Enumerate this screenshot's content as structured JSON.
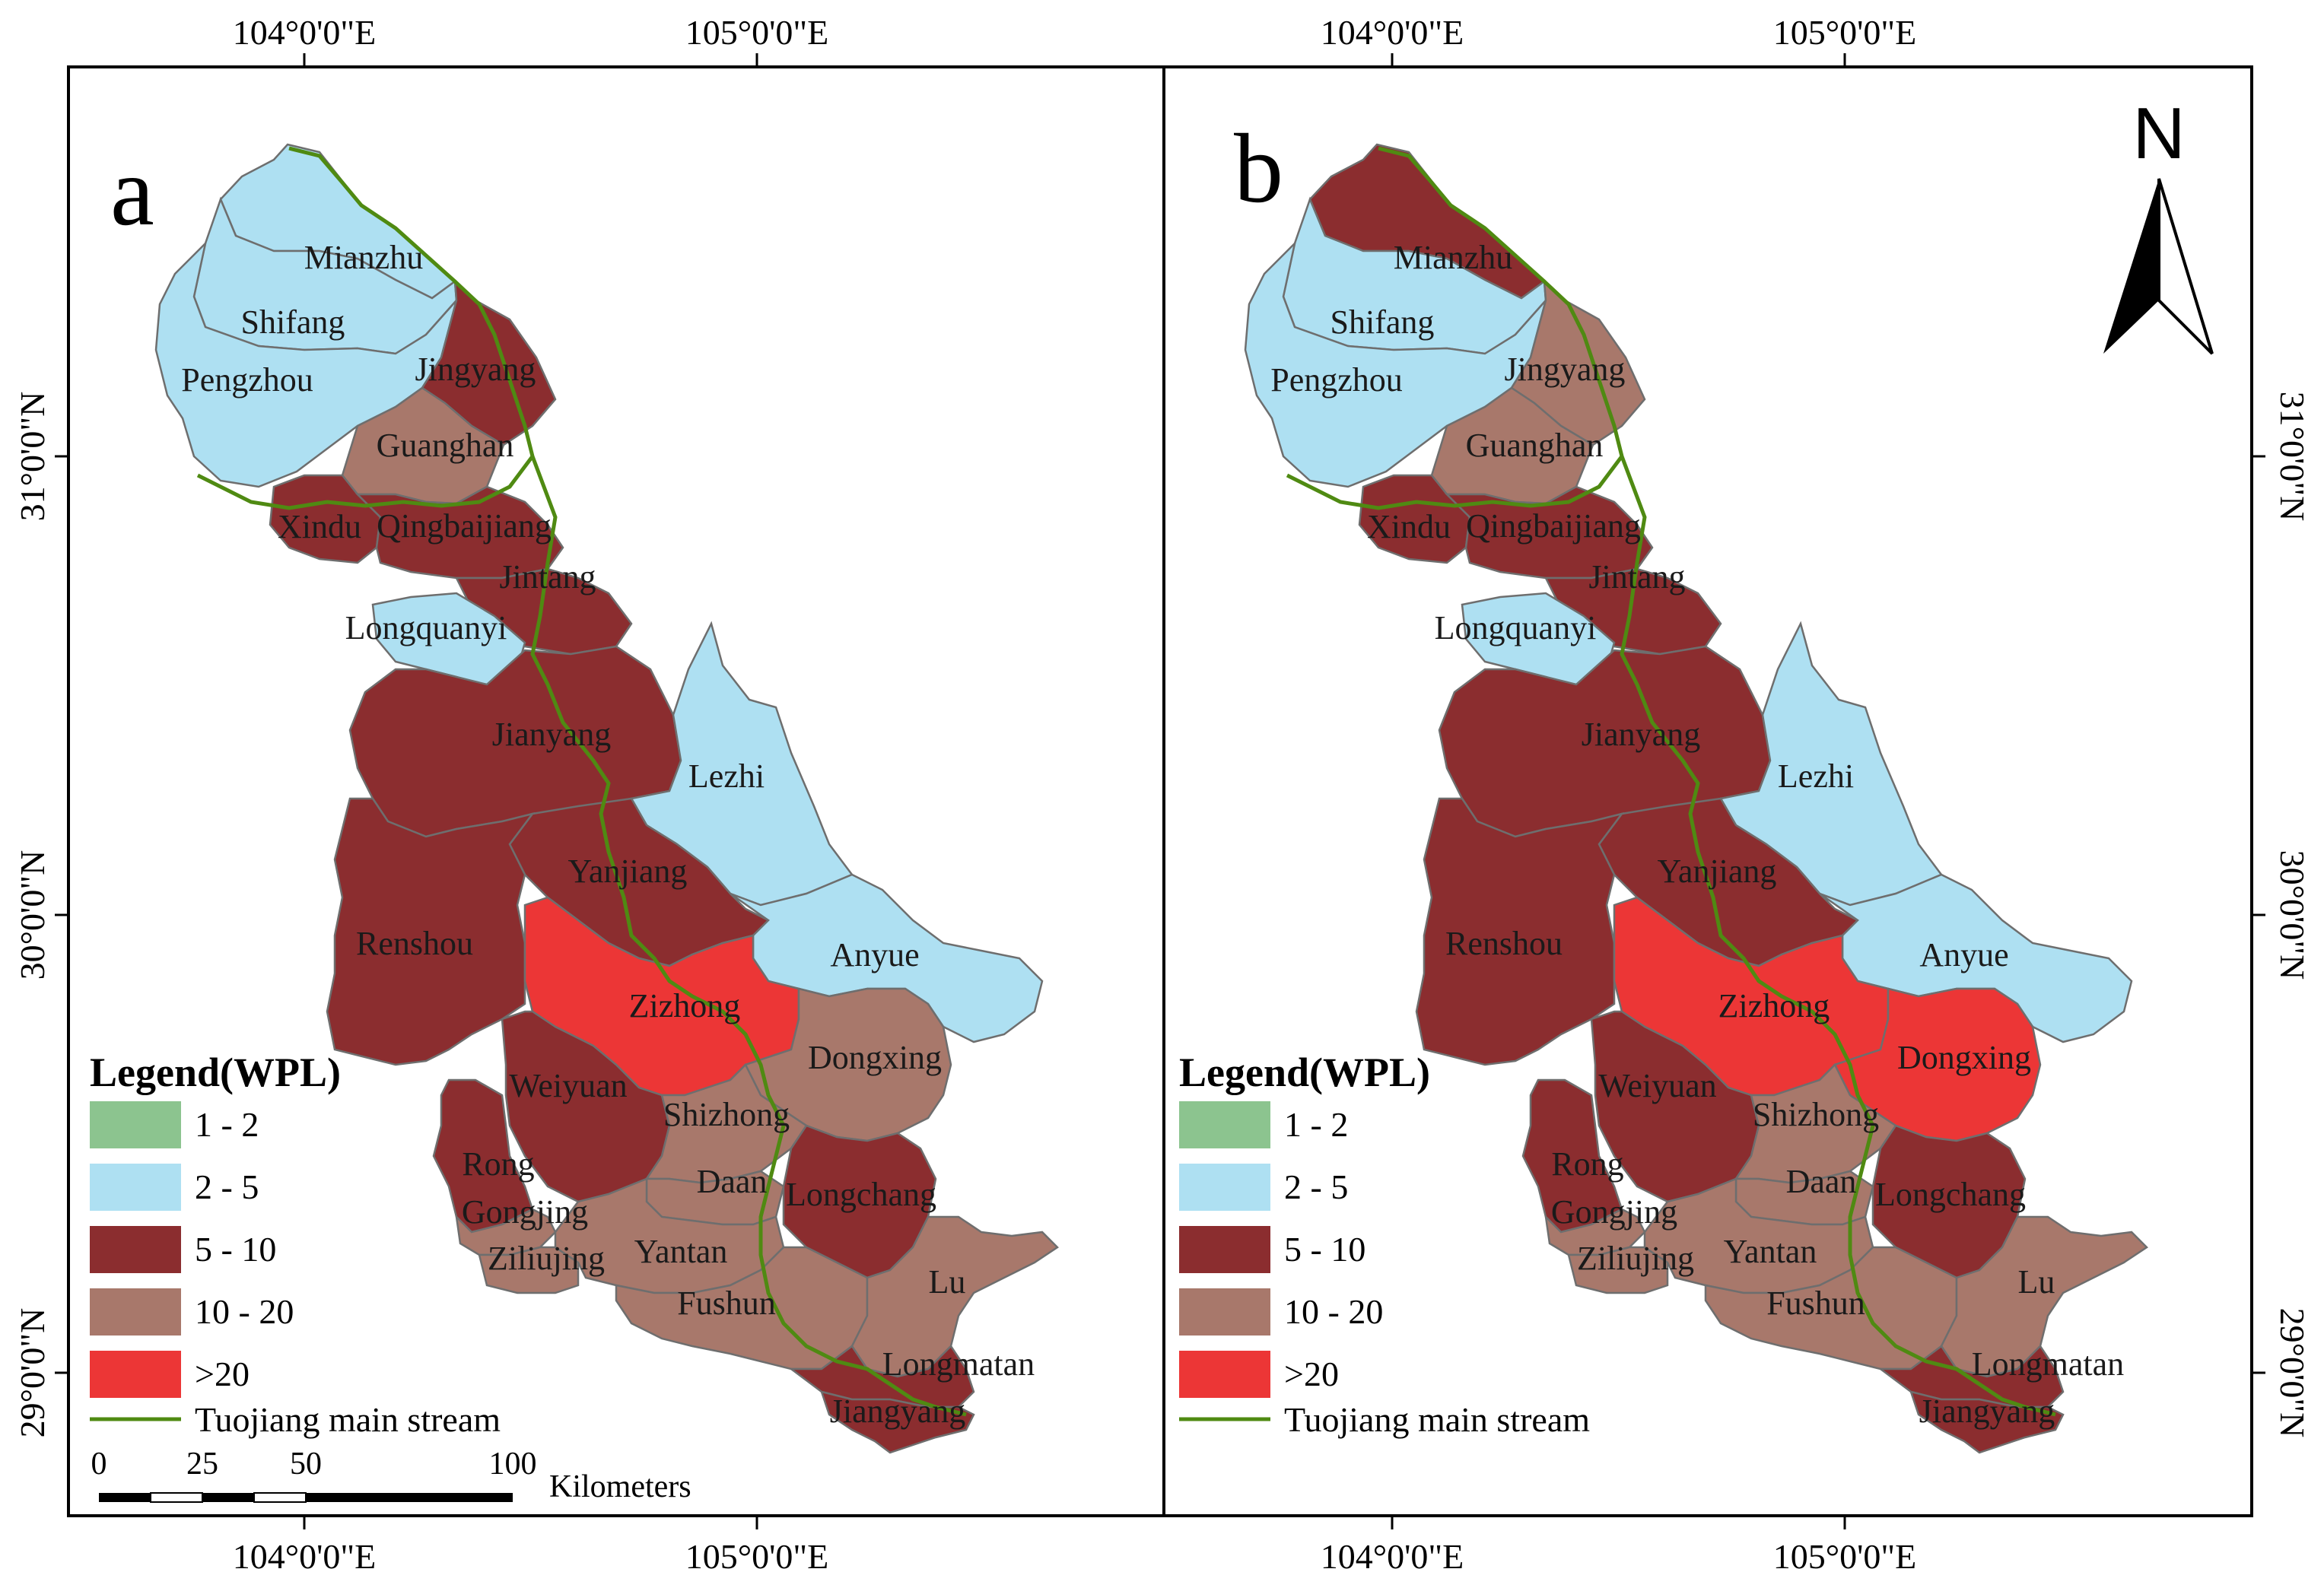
{
  "colors": {
    "class_1_2": "#8cc48f",
    "class_2_5": "#aee0f2",
    "class_5_10": "#8b2d2f",
    "class_10_20": "#a8786b",
    "class_gt20": "#ec3636",
    "stream": "#4f8a12",
    "frame": "#000000"
  },
  "axes": {
    "top_lon": [
      "104°0'0\"E",
      "105°0'0\"E"
    ],
    "bottom_lon": [
      "104°0'0\"E",
      "105°0'0\"E"
    ],
    "lat": [
      "31°0'0\"N",
      "30°0'0\"N",
      "29°0'0\"N"
    ]
  },
  "legend": {
    "title": "Legend(WPL)",
    "items": [
      {
        "label": "1 - 2",
        "color_key": "class_1_2"
      },
      {
        "label": "2 - 5",
        "color_key": "class_2_5"
      },
      {
        "label": "5 - 10",
        "color_key": "class_5_10"
      },
      {
        "label": "10 - 20",
        "color_key": "class_10_20"
      },
      {
        "label": ">20",
        "color_key": "class_gt20"
      }
    ],
    "stream_label": "Tuojiang main stream"
  },
  "scalebar": {
    "ticks": [
      "0",
      "25",
      "50",
      "100"
    ],
    "unit": "Kilometers"
  },
  "north_arrow": {
    "label": "N"
  },
  "panels": [
    {
      "letter": "a",
      "counties": {
        "Mianzhu": "class_2_5",
        "Shifang": "class_2_5",
        "Pengzhou": "class_2_5",
        "Jingyang": "class_5_10",
        "Guanghan": "class_10_20",
        "Xindu": "class_5_10",
        "Qingbaijiang": "class_5_10",
        "Jintang": "class_5_10",
        "Longquanyi": "class_2_5",
        "Jianyang": "class_5_10",
        "Lezhi": "class_2_5",
        "Yanjiang": "class_5_10",
        "Renshou": "class_5_10",
        "Anyue": "class_2_5",
        "Zizhong": "class_gt20",
        "Dongxing": "class_10_20",
        "Weiyuan": "class_5_10",
        "Shizhong": "class_10_20",
        "Rong": "class_5_10",
        "Gongjing": "class_10_20",
        "Ziliujing": "class_10_20",
        "Daan": "class_10_20",
        "Longchang": "class_5_10",
        "Yantan": "class_10_20",
        "Fushun": "class_10_20",
        "Lu": "class_10_20",
        "Longmatan": "class_5_10",
        "Jiangyang": "class_5_10"
      }
    },
    {
      "letter": "b",
      "counties": {
        "Mianzhu": "class_5_10",
        "Shifang": "class_2_5",
        "Pengzhou": "class_2_5",
        "Jingyang": "class_10_20",
        "Guanghan": "class_10_20",
        "Xindu": "class_5_10",
        "Qingbaijiang": "class_5_10",
        "Jintang": "class_5_10",
        "Longquanyi": "class_2_5",
        "Jianyang": "class_5_10",
        "Lezhi": "class_2_5",
        "Yanjiang": "class_5_10",
        "Renshou": "class_5_10",
        "Anyue": "class_2_5",
        "Zizhong": "class_gt20",
        "Dongxing": "class_gt20",
        "Weiyuan": "class_5_10",
        "Shizhong": "class_10_20",
        "Rong": "class_5_10",
        "Gongjing": "class_10_20",
        "Ziliujing": "class_10_20",
        "Daan": "class_10_20",
        "Longchang": "class_5_10",
        "Yantan": "class_10_20",
        "Fushun": "class_10_20",
        "Lu": "class_10_20",
        "Longmatan": "class_5_10",
        "Jiangyang": "class_5_10"
      }
    }
  ]
}
